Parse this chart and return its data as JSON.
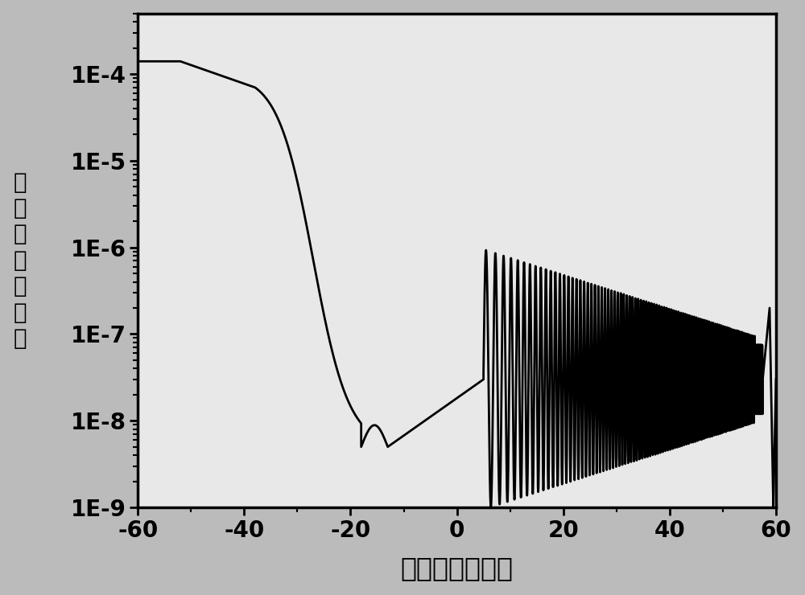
{
  "xlabel": "栋电压（伏特）",
  "ylabel_line1": "漏",
  "ylabel_line2": "电",
  "ylabel_line3": "流",
  "ylabel_line4": "（安",
  "ylabel_line5": "培）",
  "xlim": [
    -60,
    60
  ],
  "background_color": "#c8c8c8",
  "plot_bg": "#e8e8e8",
  "line_color": "#000000",
  "font_size_labels": 24,
  "font_size_ticks": 20,
  "xticks": [
    -60,
    -40,
    -20,
    0,
    20,
    40,
    60
  ],
  "ytick_values": [
    1e-09,
    1e-08,
    1e-07,
    1e-06,
    1e-05,
    0.0001
  ],
  "ytick_labels": [
    "1E-9",
    "1E-8",
    "1E-7",
    "1E-6",
    "1E-5",
    "1E-4"
  ]
}
